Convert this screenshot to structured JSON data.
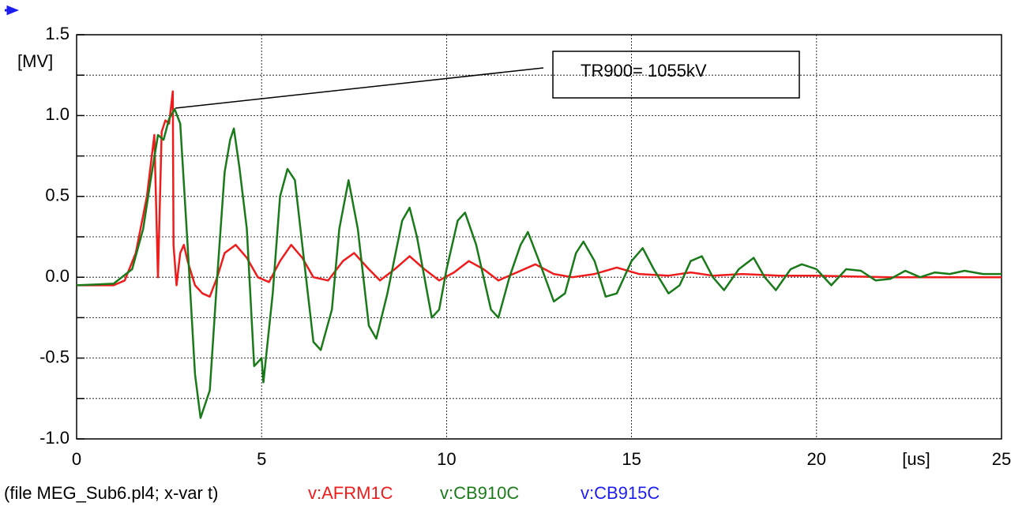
{
  "chart_data": {
    "type": "line",
    "y_unit": "[MV]",
    "x_unit": "[us]",
    "file_label": "(file MEG_Sub6.pl4; x-var t)",
    "annotation": "TR900= 1055kV",
    "xlim": [
      0,
      25
    ],
    "xticks": [
      0,
      5,
      10,
      15,
      20,
      25
    ],
    "ylim": [
      -1,
      1.5
    ],
    "yticks": [
      1.5,
      {
        "value": 1,
        "label": "1.0"
      },
      0.5,
      {
        "value": 0,
        "label": "0.0"
      },
      -0.5,
      {
        "value": -1,
        "label": "-1.0"
      }
    ],
    "y_minor_ticks": [
      1.25,
      0.75,
      0.25,
      -0.25,
      -0.75
    ],
    "grid": true,
    "series": [
      {
        "name": "v:AFRM1C",
        "color": "#ee1c1c",
        "x": [
          0,
          1,
          1.3,
          1.6,
          1.9,
          2.1,
          2.2,
          2.3,
          2.4,
          2.5,
          2.6,
          2.62,
          2.7,
          2.8,
          2.9,
          3.0,
          3.2,
          3.4,
          3.6,
          3.8,
          4.0,
          4.3,
          4.6,
          4.9,
          5.2,
          5.5,
          5.8,
          6.1,
          6.4,
          6.8,
          7.2,
          7.5,
          7.9,
          8.2,
          8.6,
          9.0,
          9.4,
          9.8,
          10.2,
          10.6,
          11.0,
          11.4,
          11.8,
          12.4,
          12.9,
          13.4,
          14.0,
          14.6,
          15.2,
          16.0,
          16.6,
          17.2,
          18.0,
          19.0,
          20,
          22,
          25
        ],
        "values": [
          -0.05,
          -0.05,
          -0.02,
          0.15,
          0.5,
          0.88,
          0.0,
          0.9,
          0.97,
          0.95,
          1.15,
          0.2,
          -0.05,
          0.15,
          0.2,
          0.1,
          -0.05,
          -0.1,
          -0.12,
          0.0,
          0.15,
          0.2,
          0.12,
          0.0,
          -0.03,
          0.1,
          0.2,
          0.12,
          0.0,
          -0.02,
          0.1,
          0.15,
          0.05,
          -0.02,
          0.05,
          0.13,
          0.05,
          -0.02,
          0.03,
          0.1,
          0.05,
          -0.02,
          0.02,
          0.08,
          0.02,
          0.0,
          0.02,
          0.06,
          0.02,
          0.01,
          0.03,
          0.01,
          0.02,
          0.01,
          0.01,
          0.0,
          0.0
        ]
      },
      {
        "name": "v:CB910C",
        "color": "#1a7a1a",
        "x": [
          0,
          1,
          1.5,
          1.8,
          2.0,
          2.2,
          2.35,
          2.5,
          2.65,
          2.8,
          3.0,
          3.2,
          3.35,
          3.6,
          3.8,
          4.0,
          4.15,
          4.25,
          4.4,
          4.6,
          4.8,
          5.0,
          5.05,
          5.3,
          5.5,
          5.7,
          5.9,
          6.1,
          6.4,
          6.6,
          6.9,
          7.1,
          7.35,
          7.6,
          7.9,
          8.1,
          8.4,
          8.8,
          9.0,
          9.2,
          9.6,
          9.8,
          10.0,
          10.3,
          10.5,
          10.8,
          11.2,
          11.4,
          11.7,
          12.0,
          12.2,
          12.5,
          12.9,
          13.2,
          13.5,
          13.7,
          14.0,
          14.3,
          14.6,
          15.0,
          15.3,
          15.6,
          16.0,
          16.3,
          16.6,
          16.9,
          17.2,
          17.5,
          17.9,
          18.3,
          18.6,
          18.9,
          19.3,
          19.6,
          20.0,
          20.4,
          20.8,
          21.2,
          21.6,
          22.0,
          22.4,
          22.8,
          23.2,
          23.6,
          24.0,
          24.5,
          25.0
        ],
        "values": [
          -0.05,
          -0.04,
          0.05,
          0.3,
          0.6,
          0.88,
          0.85,
          0.98,
          1.04,
          0.95,
          0.2,
          -0.6,
          -0.87,
          -0.7,
          0.0,
          0.65,
          0.85,
          0.92,
          0.68,
          0.3,
          -0.55,
          -0.5,
          -0.65,
          -0.1,
          0.5,
          0.67,
          0.6,
          0.2,
          -0.4,
          -0.45,
          -0.2,
          0.3,
          0.6,
          0.3,
          -0.3,
          -0.38,
          -0.1,
          0.35,
          0.43,
          0.25,
          -0.25,
          -0.2,
          0.05,
          0.35,
          0.4,
          0.2,
          -0.2,
          -0.25,
          0.0,
          0.2,
          0.28,
          0.1,
          -0.15,
          -0.1,
          0.15,
          0.22,
          0.1,
          -0.12,
          -0.1,
          0.1,
          0.18,
          0.05,
          -0.1,
          -0.05,
          0.1,
          0.13,
          0.0,
          -0.08,
          0.05,
          0.12,
          0.0,
          -0.08,
          0.05,
          0.08,
          0.05,
          -0.05,
          0.05,
          0.04,
          -0.02,
          -0.01,
          0.04,
          0.0,
          0.03,
          0.02,
          0.04,
          0.02,
          0.02
        ]
      },
      {
        "name": "v:CB915C",
        "color": "#1c1cee",
        "x": [],
        "values": []
      }
    ]
  }
}
